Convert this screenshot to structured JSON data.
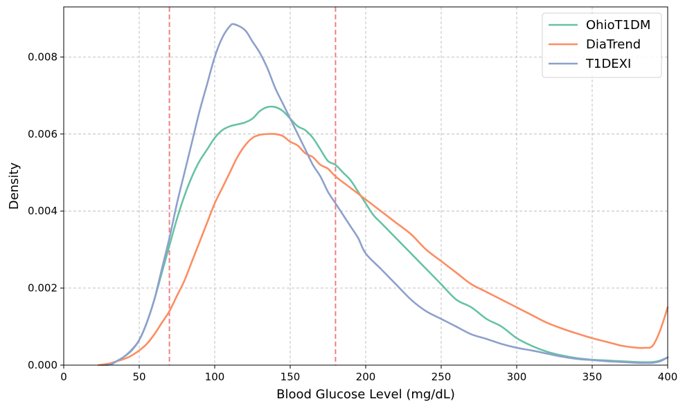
{
  "chart_data": {
    "type": "line",
    "title": "",
    "xlabel": "Blood Glucose Level (mg/dL)",
    "ylabel": "Density",
    "xlim": [
      0,
      400
    ],
    "ylim": [
      0,
      0.0093
    ],
    "x_ticks": [
      0,
      50,
      100,
      150,
      200,
      250,
      300,
      350,
      400
    ],
    "x_tick_labels": [
      "0",
      "50",
      "100",
      "150",
      "200",
      "250",
      "300",
      "350",
      "400"
    ],
    "y_ticks": [
      0,
      0.002,
      0.004,
      0.006,
      0.008
    ],
    "y_tick_labels": [
      "0.000",
      "0.002",
      "0.004",
      "0.006",
      "0.008"
    ],
    "grid": true,
    "legend_position": "top-right",
    "reference_lines": [
      {
        "x": 70,
        "color": "#f08080",
        "style": "dashed"
      },
      {
        "x": 180,
        "color": "#f08080",
        "style": "dashed"
      }
    ],
    "series": [
      {
        "name": "OhioT1DM",
        "color": "#66c2a5",
        "points": [
          [
            25,
            0
          ],
          [
            30,
            2e-05
          ],
          [
            35,
            0.0001
          ],
          [
            40,
            0.00022
          ],
          [
            45,
            0.00038
          ],
          [
            50,
            0.00065
          ],
          [
            55,
            0.0011
          ],
          [
            60,
            0.0017
          ],
          [
            65,
            0.0024
          ],
          [
            70,
            0.0031
          ],
          [
            75,
            0.0038
          ],
          [
            80,
            0.0044
          ],
          [
            85,
            0.0049
          ],
          [
            90,
            0.0053
          ],
          [
            95,
            0.0056
          ],
          [
            100,
            0.0059
          ],
          [
            105,
            0.0061
          ],
          [
            110,
            0.0062
          ],
          [
            115,
            0.00625
          ],
          [
            120,
            0.0063
          ],
          [
            125,
            0.0064
          ],
          [
            130,
            0.0066
          ],
          [
            135,
            0.0067
          ],
          [
            140,
            0.0067
          ],
          [
            145,
            0.0066
          ],
          [
            150,
            0.0064
          ],
          [
            155,
            0.0062
          ],
          [
            160,
            0.0061
          ],
          [
            165,
            0.0059
          ],
          [
            170,
            0.0056
          ],
          [
            175,
            0.0053
          ],
          [
            180,
            0.0052
          ],
          [
            185,
            0.005
          ],
          [
            190,
            0.0048
          ],
          [
            195,
            0.0045
          ],
          [
            200,
            0.0042
          ],
          [
            205,
            0.0039
          ],
          [
            210,
            0.0037
          ],
          [
            215,
            0.0035
          ],
          [
            220,
            0.0033
          ],
          [
            225,
            0.0031
          ],
          [
            230,
            0.0029
          ],
          [
            240,
            0.0025
          ],
          [
            250,
            0.0021
          ],
          [
            260,
            0.0017
          ],
          [
            270,
            0.0015
          ],
          [
            280,
            0.0012
          ],
          [
            290,
            0.001
          ],
          [
            300,
            0.0007
          ],
          [
            310,
            0.0005
          ],
          [
            320,
            0.00035
          ],
          [
            330,
            0.00025
          ],
          [
            340,
            0.00018
          ],
          [
            350,
            0.00014
          ],
          [
            360,
            0.00012
          ],
          [
            370,
            0.0001
          ],
          [
            380,
            8e-05
          ],
          [
            390,
            8e-05
          ],
          [
            395,
            0.00012
          ],
          [
            400,
            0.0002
          ]
        ]
      },
      {
        "name": "DiaTrend",
        "color": "#fc8d62",
        "points": [
          [
            23,
            0
          ],
          [
            30,
            4e-05
          ],
          [
            35,
            0.0001
          ],
          [
            40,
            0.00016
          ],
          [
            45,
            0.00025
          ],
          [
            50,
            0.00038
          ],
          [
            55,
            0.00055
          ],
          [
            60,
            0.0008
          ],
          [
            65,
            0.0011
          ],
          [
            70,
            0.0014
          ],
          [
            75,
            0.0018
          ],
          [
            80,
            0.0022
          ],
          [
            85,
            0.0027
          ],
          [
            90,
            0.0032
          ],
          [
            95,
            0.0037
          ],
          [
            100,
            0.0042
          ],
          [
            105,
            0.0046
          ],
          [
            110,
            0.005
          ],
          [
            115,
            0.0054
          ],
          [
            120,
            0.0057
          ],
          [
            125,
            0.0059
          ],
          [
            130,
            0.00598
          ],
          [
            135,
            0.006
          ],
          [
            140,
            0.006
          ],
          [
            145,
            0.00595
          ],
          [
            150,
            0.0058
          ],
          [
            155,
            0.0057
          ],
          [
            160,
            0.0055
          ],
          [
            165,
            0.0054
          ],
          [
            170,
            0.0052
          ],
          [
            175,
            0.0051
          ],
          [
            180,
            0.0049
          ],
          [
            190,
            0.0046
          ],
          [
            200,
            0.0043
          ],
          [
            210,
            0.004
          ],
          [
            220,
            0.0037
          ],
          [
            230,
            0.0034
          ],
          [
            240,
            0.003
          ],
          [
            250,
            0.0027
          ],
          [
            260,
            0.0024
          ],
          [
            270,
            0.0021
          ],
          [
            280,
            0.0019
          ],
          [
            290,
            0.0017
          ],
          [
            300,
            0.0015
          ],
          [
            310,
            0.0013
          ],
          [
            320,
            0.0011
          ],
          [
            330,
            0.00095
          ],
          [
            340,
            0.00082
          ],
          [
            350,
            0.0007
          ],
          [
            360,
            0.0006
          ],
          [
            370,
            0.0005
          ],
          [
            380,
            0.00045
          ],
          [
            385,
            0.00045
          ],
          [
            390,
            0.0005
          ],
          [
            395,
            0.0009
          ],
          [
            400,
            0.0015
          ]
        ]
      },
      {
        "name": "T1DEXI",
        "color": "#8da0cb",
        "points": [
          [
            28,
            0
          ],
          [
            32,
            3e-05
          ],
          [
            35,
            0.0001
          ],
          [
            40,
            0.00022
          ],
          [
            45,
            0.0004
          ],
          [
            50,
            0.00065
          ],
          [
            55,
            0.0011
          ],
          [
            60,
            0.0017
          ],
          [
            65,
            0.0025
          ],
          [
            70,
            0.0033
          ],
          [
            75,
            0.0042
          ],
          [
            80,
            0.005
          ],
          [
            85,
            0.0058
          ],
          [
            90,
            0.0066
          ],
          [
            95,
            0.0073
          ],
          [
            100,
            0.008
          ],
          [
            105,
            0.0085
          ],
          [
            110,
            0.0088
          ],
          [
            113,
            0.00885
          ],
          [
            120,
            0.0087
          ],
          [
            125,
            0.0084
          ],
          [
            130,
            0.0081
          ],
          [
            135,
            0.0077
          ],
          [
            140,
            0.0072
          ],
          [
            145,
            0.0068
          ],
          [
            150,
            0.0064
          ],
          [
            155,
            0.006
          ],
          [
            160,
            0.0056
          ],
          [
            165,
            0.0052
          ],
          [
            170,
            0.0049
          ],
          [
            175,
            0.0045
          ],
          [
            180,
            0.0042
          ],
          [
            185,
            0.0039
          ],
          [
            190,
            0.0036
          ],
          [
            195,
            0.0033
          ],
          [
            200,
            0.0029
          ],
          [
            210,
            0.0025
          ],
          [
            220,
            0.0021
          ],
          [
            230,
            0.0017
          ],
          [
            240,
            0.0014
          ],
          [
            250,
            0.0012
          ],
          [
            260,
            0.001
          ],
          [
            270,
            0.0008
          ],
          [
            280,
            0.00068
          ],
          [
            290,
            0.00055
          ],
          [
            300,
            0.00045
          ],
          [
            310,
            0.00038
          ],
          [
            320,
            0.0003
          ],
          [
            330,
            0.00022
          ],
          [
            340,
            0.00016
          ],
          [
            350,
            0.00013
          ],
          [
            360,
            0.0001
          ],
          [
            370,
            8e-05
          ],
          [
            380,
            6e-05
          ],
          [
            390,
            6e-05
          ],
          [
            395,
            0.0001
          ],
          [
            400,
            0.0002
          ]
        ]
      }
    ]
  }
}
